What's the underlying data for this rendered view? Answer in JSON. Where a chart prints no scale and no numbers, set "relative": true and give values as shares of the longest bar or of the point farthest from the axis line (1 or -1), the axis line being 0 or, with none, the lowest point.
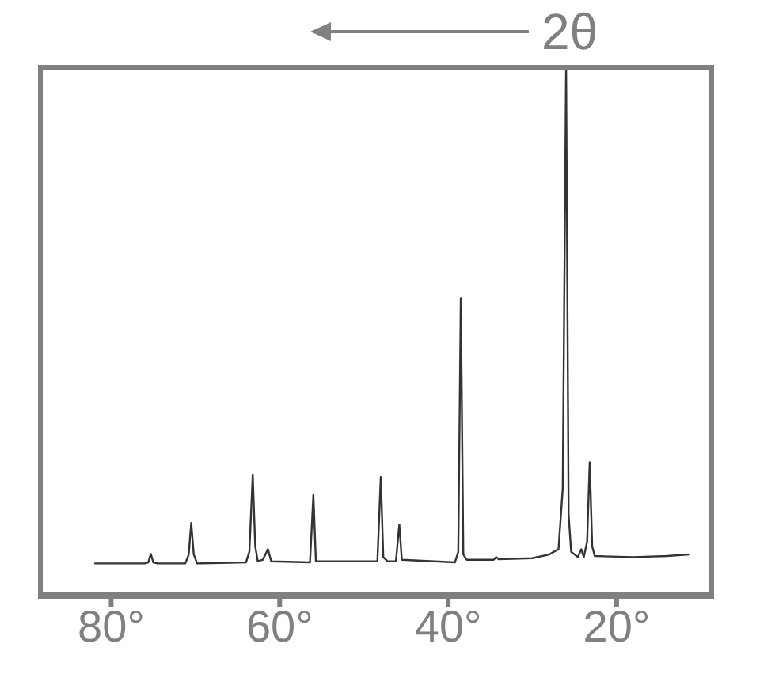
{
  "chart_data": {
    "type": "line",
    "xlabel": "2θ",
    "relative": true,
    "grid": false,
    "marker": "none",
    "line_style": "solid",
    "xlim": [
      88.5,
      9
    ],
    "xticks": [
      {
        "value": 80,
        "label": "80°"
      },
      {
        "value": 60,
        "label": "60°"
      },
      {
        "value": 40,
        "label": "40°"
      },
      {
        "value": 20,
        "label": "20°"
      }
    ],
    "x": [
      82,
      76,
      75.6,
      75.3,
      75,
      74.5,
      71.2,
      70.8,
      70.5,
      70.2,
      69.8,
      64,
      63.6,
      63.2,
      62.9,
      62.6,
      62,
      61.4,
      61,
      56.4,
      56,
      55.7,
      48.4,
      48,
      47.7,
      47.2,
      46.2,
      45.8,
      45.5,
      39.2,
      38.8,
      38.5,
      38.2,
      37.8,
      34.6,
      34.3,
      34,
      30,
      28,
      26.9,
      26.4,
      26,
      25.7,
      25.4,
      24.6,
      24.2,
      23.9,
      23.5,
      23.2,
      22.9,
      22.6,
      18,
      14,
      11.4
    ],
    "series": [
      {
        "color": "#333333",
        "values": [
          0.058,
          0.058,
          0.06,
          0.076,
          0.06,
          0.058,
          0.058,
          0.075,
          0.135,
          0.075,
          0.058,
          0.06,
          0.08,
          0.226,
          0.09,
          0.062,
          0.065,
          0.085,
          0.062,
          0.06,
          0.188,
          0.062,
          0.062,
          0.222,
          0.07,
          0.062,
          0.062,
          0.132,
          0.065,
          0.06,
          0.08,
          0.561,
          0.075,
          0.065,
          0.065,
          0.07,
          0.066,
          0.068,
          0.075,
          0.085,
          0.2,
          1,
          0.15,
          0.08,
          0.07,
          0.085,
          0.07,
          0.1,
          0.25,
          0.09,
          0.072,
          0.07,
          0.072,
          0.075
        ]
      }
    ]
  }
}
